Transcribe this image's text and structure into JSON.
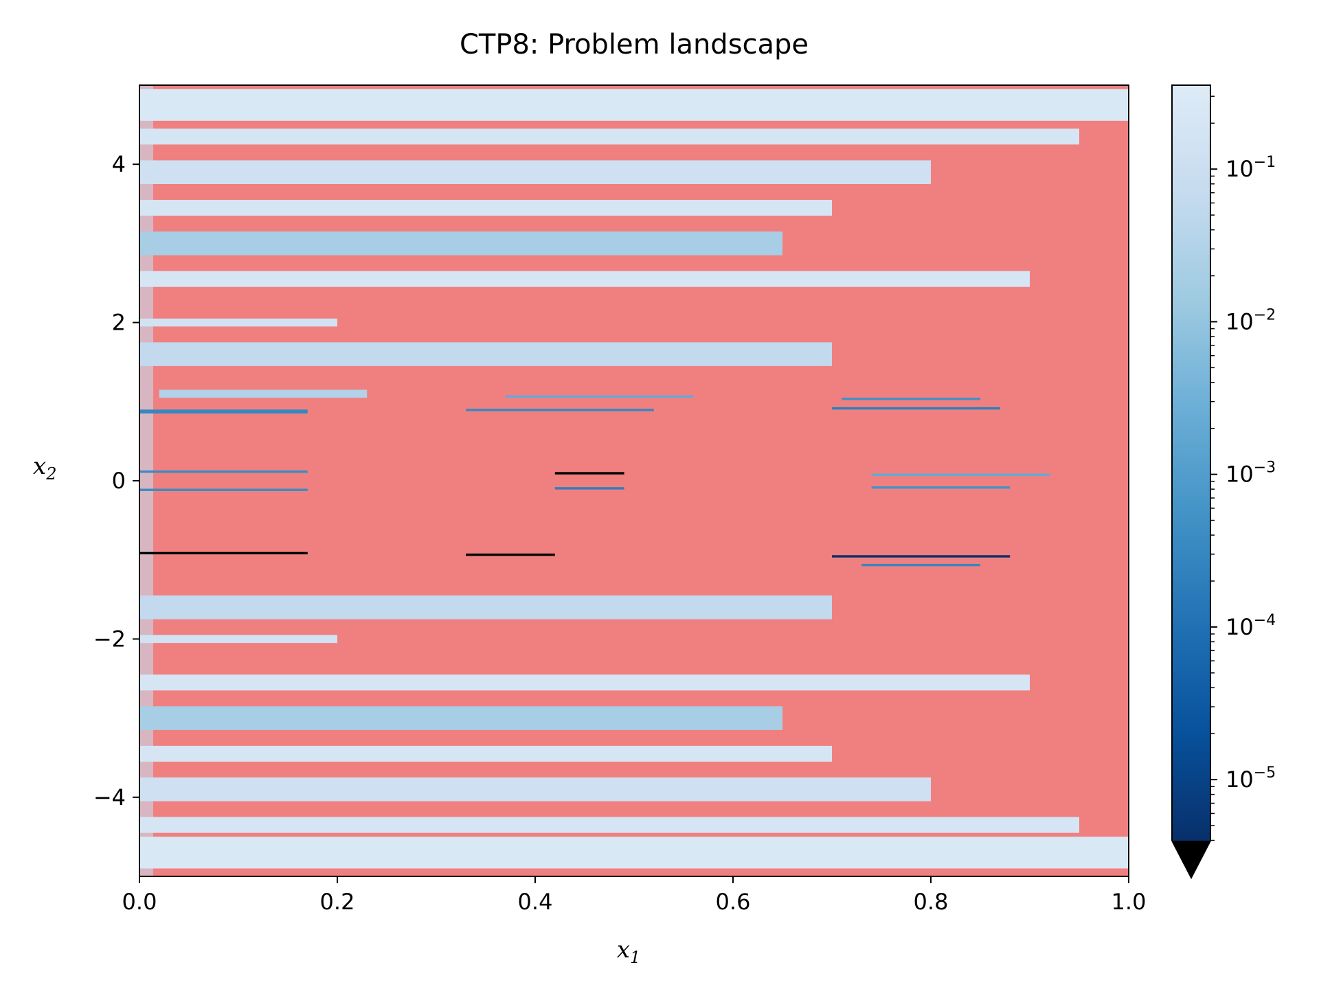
{
  "chart_data": {
    "type": "heatmap",
    "title": "CTP8: Problem landscape",
    "xlabel": {
      "base": "x",
      "sub": "1"
    },
    "ylabel": {
      "base": "x",
      "sub": "2"
    },
    "xlim": [
      0.0,
      1.0
    ],
    "ylim": [
      -5,
      5
    ],
    "xticks": [
      {
        "value": 0.0,
        "label": "0.0"
      },
      {
        "value": 0.2,
        "label": "0.2"
      },
      {
        "value": 0.4,
        "label": "0.4"
      },
      {
        "value": 0.6,
        "label": "0.6"
      },
      {
        "value": 0.8,
        "label": "0.8"
      },
      {
        "value": 1.0,
        "label": "1.0"
      }
    ],
    "yticks": [
      {
        "value": -4,
        "label": "−4"
      },
      {
        "value": -2,
        "label": "−2"
      },
      {
        "value": 0,
        "label": "0"
      },
      {
        "value": 2,
        "label": "2"
      },
      {
        "value": 4,
        "label": "4"
      }
    ],
    "infeasible_color": "#f08080",
    "colorbar": {
      "scale": "log",
      "colormap": "Blues_r",
      "range_log10": [
        -5.4,
        -0.45
      ],
      "extend": "min",
      "extend_color": "#000000",
      "ticks": [
        {
          "exp": -1,
          "label_base": "10",
          "label_exp": "−1"
        },
        {
          "exp": -2,
          "label_base": "10",
          "label_exp": "−2"
        },
        {
          "exp": -3,
          "label_base": "10",
          "label_exp": "−3"
        },
        {
          "exp": -4,
          "label_base": "10",
          "label_exp": "−4"
        },
        {
          "exp": -5,
          "label_base": "10",
          "label_exp": "−5"
        }
      ],
      "stops": [
        "#08306b",
        "#08519c",
        "#2171b5",
        "#4292c6",
        "#6baed6",
        "#9ecae1",
        "#c6dbef",
        "#deebf7"
      ]
    },
    "feasible_bands": [
      {
        "y": [
          4.55,
          4.95
        ],
        "x": [
          0.0,
          1.0
        ],
        "value": 0.25
      },
      {
        "y": [
          4.25,
          4.45
        ],
        "x": [
          0.0,
          0.95
        ],
        "value": 0.2
      },
      {
        "y": [
          3.75,
          4.05
        ],
        "x": [
          0.0,
          0.8
        ],
        "value": 0.12
      },
      {
        "y": [
          3.35,
          3.55
        ],
        "x": [
          0.0,
          0.7
        ],
        "value": 0.2
      },
      {
        "y": [
          2.85,
          3.15
        ],
        "x": [
          0.0,
          0.65
        ],
        "value": 0.02
      },
      {
        "y": [
          2.45,
          2.65
        ],
        "x": [
          0.0,
          0.9
        ],
        "value": 0.2
      },
      {
        "y": [
          1.95,
          2.05
        ],
        "x": [
          0.0,
          0.2
        ],
        "value": 0.15
      },
      {
        "y": [
          1.45,
          1.75
        ],
        "x": [
          0.0,
          0.7
        ],
        "value": 0.06
      },
      {
        "y": [
          1.05,
          1.15
        ],
        "x": [
          0.02,
          0.23
        ],
        "value": 0.03
      },
      {
        "y": [
          0.85,
          0.9
        ],
        "x": [
          0.0,
          0.17
        ],
        "value": 0.0003
      },
      {
        "y": [
          0.1,
          0.13
        ],
        "x": [
          0.0,
          0.17
        ],
        "value": 0.0004
      },
      {
        "y": [
          -0.13,
          -0.1
        ],
        "x": [
          0.0,
          0.17
        ],
        "value": 0.0004
      },
      {
        "y": [
          -0.93,
          -0.9
        ],
        "x": [
          0.0,
          0.17
        ],
        "value": 3e-06
      },
      {
        "y": [
          1.05,
          1.08
        ],
        "x": [
          0.37,
          0.56
        ],
        "value": 0.002
      },
      {
        "y": [
          0.88,
          0.91
        ],
        "x": [
          0.33,
          0.52
        ],
        "value": 0.0003
      },
      {
        "y": [
          0.08,
          0.11
        ],
        "x": [
          0.42,
          0.49
        ],
        "value": 3e-06
      },
      {
        "y": [
          -0.11,
          -0.08
        ],
        "x": [
          0.42,
          0.49
        ],
        "value": 0.0002
      },
      {
        "y": [
          -0.95,
          -0.92
        ],
        "x": [
          0.33,
          0.42
        ],
        "value": 3e-06
      },
      {
        "y": [
          1.02,
          1.05
        ],
        "x": [
          0.71,
          0.85
        ],
        "value": 0.0005
      },
      {
        "y": [
          0.9,
          0.93
        ],
        "x": [
          0.7,
          0.87
        ],
        "value": 0.0002
      },
      {
        "y": [
          0.06,
          0.09
        ],
        "x": [
          0.74,
          0.92
        ],
        "value": 0.002
      },
      {
        "y": [
          -0.1,
          -0.07
        ],
        "x": [
          0.74,
          0.88
        ],
        "value": 0.0006
      },
      {
        "y": [
          -0.97,
          -0.94
        ],
        "x": [
          0.7,
          0.88
        ],
        "value": 4e-06
      },
      {
        "y": [
          -1.08,
          -1.05
        ],
        "x": [
          0.73,
          0.85
        ],
        "value": 0.0003
      },
      {
        "y": [
          -1.75,
          -1.45
        ],
        "x": [
          0.0,
          0.7
        ],
        "value": 0.06
      },
      {
        "y": [
          -2.05,
          -1.95
        ],
        "x": [
          0.0,
          0.2
        ],
        "value": 0.15
      },
      {
        "y": [
          -2.65,
          -2.45
        ],
        "x": [
          0.0,
          0.9
        ],
        "value": 0.2
      },
      {
        "y": [
          -3.15,
          -2.85
        ],
        "x": [
          0.0,
          0.65
        ],
        "value": 0.02
      },
      {
        "y": [
          -3.55,
          -3.35
        ],
        "x": [
          0.0,
          0.7
        ],
        "value": 0.2
      },
      {
        "y": [
          -4.05,
          -3.75
        ],
        "x": [
          0.0,
          0.8
        ],
        "value": 0.12
      },
      {
        "y": [
          -4.45,
          -4.25
        ],
        "x": [
          0.0,
          0.95
        ],
        "value": 0.2
      },
      {
        "y": [
          -4.9,
          -4.5
        ],
        "x": [
          0.0,
          1.0
        ],
        "value": 0.25
      }
    ]
  }
}
